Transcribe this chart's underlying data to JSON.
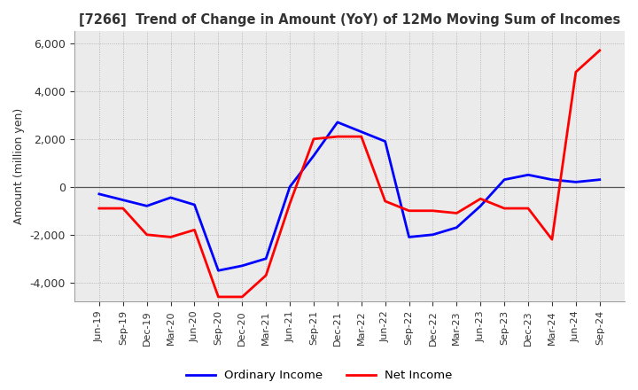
{
  "title": "[7266]  Trend of Change in Amount (YoY) of 12Mo Moving Sum of Incomes",
  "ylabel": "Amount (million yen)",
  "ylim": [
    -4800,
    6500
  ],
  "yticks": [
    -4000,
    -2000,
    0,
    2000,
    4000,
    6000
  ],
  "ordinary_income_color": "#0000FF",
  "net_income_color": "#FF0000",
  "line_width": 2.0,
  "background_color": "#FFFFFF",
  "plot_bg_color": "#EBEBEB",
  "grid_color": "#AAAAAA",
  "x_labels": [
    "Jun-19",
    "Sep-19",
    "Dec-19",
    "Mar-20",
    "Jun-20",
    "Sep-20",
    "Dec-20",
    "Mar-21",
    "Jun-21",
    "Sep-21",
    "Dec-21",
    "Mar-22",
    "Jun-22",
    "Sep-22",
    "Dec-22",
    "Mar-23",
    "Jun-23",
    "Sep-23",
    "Dec-23",
    "Mar-24",
    "Jun-24",
    "Sep-24"
  ],
  "ordinary_income": [
    -300,
    -550,
    -800,
    -450,
    -750,
    -3500,
    -3300,
    -3000,
    0,
    1300,
    2700,
    2300,
    1900,
    -2100,
    -2000,
    -1700,
    -800,
    300,
    500,
    300,
    200,
    300
  ],
  "net_income": [
    -900,
    -900,
    -2000,
    -2100,
    -1800,
    -4600,
    -4600,
    -3700,
    -700,
    2000,
    2100,
    2100,
    -600,
    -1000,
    -1000,
    -1100,
    -500,
    -900,
    -900,
    -2200,
    4800,
    5700
  ]
}
